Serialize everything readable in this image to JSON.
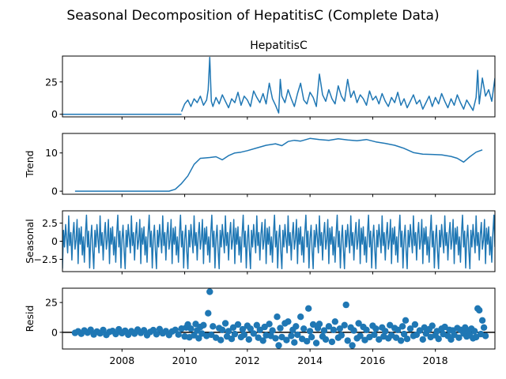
{
  "figure": {
    "title": "Seasonal Decomposition of HepatitisC (Complete Data)",
    "color": "#1f77b4"
  },
  "chart_data": [
    {
      "type": "line",
      "panel": "observed",
      "title": "HepatitisC",
      "ylabel": "",
      "xlim": [
        2006.1,
        2019.9
      ],
      "ylim": [
        -2,
        45
      ],
      "yticks": [
        0,
        25
      ],
      "xticks": [
        2008,
        2010,
        2012,
        2014,
        2016,
        2018
      ],
      "xtick_labels_visible": false,
      "segments": [
        {
          "x": [
            2006.1,
            2009.9
          ],
          "y": [
            0,
            0
          ]
        },
        {
          "x": [
            2009.9,
            2010.0,
            2010.1,
            2010.2,
            2010.3,
            2010.4,
            2010.5,
            2010.6,
            2010.7,
            2010.75,
            2010.8,
            2010.85,
            2010.9,
            2011.0,
            2011.1,
            2011.2,
            2011.3,
            2011.4,
            2011.5,
            2011.6,
            2011.7,
            2011.8,
            2011.9,
            2012.0,
            2012.1,
            2012.2,
            2012.3,
            2012.4,
            2012.5,
            2012.6,
            2012.7,
            2012.8,
            2012.9,
            2013.0,
            2013.05,
            2013.1,
            2013.2,
            2013.3,
            2013.4,
            2013.5,
            2013.6,
            2013.7,
            2013.8,
            2013.9,
            2014.0,
            2014.1,
            2014.2,
            2014.3,
            2014.4,
            2014.5,
            2014.6,
            2014.7,
            2014.8,
            2014.9,
            2015.0,
            2015.1,
            2015.2,
            2015.3,
            2015.4,
            2015.5,
            2015.6,
            2015.7,
            2015.8,
            2015.9,
            2016.0,
            2016.1,
            2016.2,
            2016.3,
            2016.4,
            2016.5,
            2016.6,
            2016.7,
            2016.8,
            2016.9,
            2017.0,
            2017.1,
            2017.2,
            2017.3,
            2017.4,
            2017.5,
            2017.6,
            2017.7,
            2017.8,
            2017.9,
            2018.0,
            2018.1,
            2018.2,
            2018.3,
            2018.4,
            2018.5,
            2018.6,
            2018.7,
            2018.8,
            2018.9,
            2019.0,
            2019.1,
            2019.2,
            2019.3,
            2019.35,
            2019.4,
            2019.5,
            2019.6,
            2019.7,
            2019.8,
            2019.9
          ],
          "y": [
            2,
            8,
            11,
            6,
            12,
            9,
            14,
            7,
            11,
            19,
            44,
            10,
            6,
            13,
            8,
            15,
            10,
            5,
            12,
            9,
            17,
            7,
            14,
            11,
            6,
            18,
            13,
            9,
            16,
            8,
            24,
            12,
            7,
            1,
            27,
            14,
            9,
            19,
            12,
            6,
            16,
            24,
            11,
            8,
            17,
            13,
            6,
            31,
            15,
            10,
            19,
            12,
            8,
            22,
            14,
            10,
            27,
            13,
            18,
            9,
            15,
            12,
            7,
            18,
            11,
            14,
            8,
            16,
            10,
            6,
            13,
            9,
            17,
            7,
            12,
            5,
            10,
            15,
            8,
            11,
            4,
            9,
            14,
            6,
            13,
            8,
            16,
            10,
            5,
            12,
            7,
            15,
            9,
            4,
            11,
            7,
            3,
            13,
            34,
            8,
            28,
            14,
            19,
            10,
            28
          ]
        }
      ]
    },
    {
      "type": "line",
      "panel": "trend",
      "title": "",
      "ylabel": "Trend",
      "xlim": [
        2006.1,
        2019.9
      ],
      "ylim": [
        -0.8,
        15.1
      ],
      "yticks": [
        0,
        10
      ],
      "xticks": [
        2008,
        2010,
        2012,
        2014,
        2016,
        2018
      ],
      "xtick_labels_visible": false,
      "x": [
        2006.5,
        2009.5,
        2009.7,
        2009.9,
        2010.1,
        2010.3,
        2010.5,
        2010.8,
        2011.0,
        2011.2,
        2011.4,
        2011.6,
        2011.8,
        2012.0,
        2012.3,
        2012.6,
        2012.9,
        2013.1,
        2013.3,
        2013.5,
        2013.7,
        2014.0,
        2014.3,
        2014.6,
        2014.9,
        2015.2,
        2015.5,
        2015.8,
        2016.1,
        2016.4,
        2016.7,
        2017.0,
        2017.3,
        2017.6,
        2017.9,
        2018.2,
        2018.5,
        2018.7,
        2018.9,
        2019.1,
        2019.3,
        2019.5
      ],
      "y": [
        0,
        0,
        0.5,
        2.0,
        4.0,
        7.0,
        8.6,
        8.8,
        9.0,
        8.2,
        9.3,
        10.0,
        10.2,
        10.6,
        11.3,
        12.0,
        12.4,
        11.9,
        13.0,
        13.3,
        13.1,
        13.8,
        13.5,
        13.3,
        13.7,
        13.4,
        13.2,
        13.5,
        12.9,
        12.5,
        12.0,
        11.2,
        10.1,
        9.7,
        9.6,
        9.5,
        9.1,
        8.6,
        7.6,
        9.0,
        10.2,
        10.8
      ]
    },
    {
      "type": "line",
      "panel": "seasonal",
      "title": "",
      "ylabel": "Seasonal",
      "xlim": [
        2006.1,
        2019.9
      ],
      "ylim": [
        -4.2,
        4.2
      ],
      "yticks": [
        2.5,
        0.0,
        -2.5
      ],
      "xticks": [
        2008,
        2010,
        2012,
        2014,
        2016,
        2018
      ],
      "xtick_labels_visible": false,
      "pattern": [
        -3.8,
        1.5,
        -0.8,
        2.3,
        0.4,
        -1.6,
        3.5,
        -0.6,
        1.2,
        -2.6,
        0.9,
        2.6,
        -1.1,
        0.2,
        3.0,
        -3.1,
        1.8,
        -0.4,
        2.0,
        -1.9,
        0.6,
        -2.9,
        1.1,
        3.6,
        -0.8,
        1.4,
        -3.7,
        0.3,
        2.2,
        -1.3
      ],
      "period_years": 1.0
    },
    {
      "type": "scatter",
      "panel": "resid",
      "title": "",
      "ylabel": "Resid",
      "xlim": [
        2006.1,
        2019.9
      ],
      "ylim": [
        -14,
        37
      ],
      "yticks": [
        0,
        25
      ],
      "xticks": [
        2008,
        2010,
        2012,
        2014,
        2016,
        2018
      ],
      "xtick_labels": [
        "2008",
        "2010",
        "2012",
        "2014",
        "2016",
        "2018"
      ],
      "baseline": 0,
      "points": [
        [
          2006.5,
          -0.5
        ],
        [
          2006.6,
          0.8
        ],
        [
          2006.7,
          -1.2
        ],
        [
          2006.8,
          1.5
        ],
        [
          2006.9,
          -0.3
        ],
        [
          2007.0,
          2.1
        ],
        [
          2007.1,
          -1.8
        ],
        [
          2007.2,
          0.6
        ],
        [
          2007.3,
          -0.9
        ],
        [
          2007.4,
          1.9
        ],
        [
          2007.5,
          -2.2
        ],
        [
          2007.6,
          0.4
        ],
        [
          2007.7,
          1.1
        ],
        [
          2007.8,
          -1.4
        ],
        [
          2007.9,
          2.5
        ],
        [
          2008.0,
          -0.7
        ],
        [
          2008.1,
          1.3
        ],
        [
          2008.2,
          -2.0
        ],
        [
          2008.3,
          0.9
        ],
        [
          2008.4,
          -1.1
        ],
        [
          2008.5,
          2.2
        ],
        [
          2008.6,
          -0.5
        ],
        [
          2008.7,
          1.7
        ],
        [
          2008.8,
          -2.4
        ],
        [
          2008.9,
          0.3
        ],
        [
          2009.0,
          1.8
        ],
        [
          2009.1,
          -1.6
        ],
        [
          2009.2,
          2.7
        ],
        [
          2009.3,
          -0.8
        ],
        [
          2009.4,
          1.0
        ],
        [
          2009.5,
          -2.3
        ],
        [
          2009.6,
          0.7
        ],
        [
          2009.7,
          2.0
        ],
        [
          2009.8,
          -1.9
        ],
        [
          2009.9,
          3.1
        ],
        [
          2010.0,
          -3.5
        ],
        [
          2010.05,
          4.0
        ],
        [
          2010.1,
          6.5
        ],
        [
          2010.15,
          -4.2
        ],
        [
          2010.2,
          3.0
        ],
        [
          2010.3,
          -2.5
        ],
        [
          2010.35,
          7.0
        ],
        [
          2010.4,
          1.5
        ],
        [
          2010.45,
          -5.0
        ],
        [
          2010.5,
          4.5
        ],
        [
          2010.55,
          -1.0
        ],
        [
          2010.6,
          6.0
        ],
        [
          2010.7,
          -3.0
        ],
        [
          2010.75,
          16.0
        ],
        [
          2010.8,
          34.0
        ],
        [
          2010.85,
          -2.0
        ],
        [
          2010.9,
          5.0
        ],
        [
          2011.0,
          -4.5
        ],
        [
          2011.1,
          3.5
        ],
        [
          2011.15,
          -6.5
        ],
        [
          2011.2,
          2.0
        ],
        [
          2011.3,
          7.5
        ],
        [
          2011.35,
          -3.5
        ],
        [
          2011.4,
          1.0
        ],
        [
          2011.5,
          -5.5
        ],
        [
          2011.55,
          4.0
        ],
        [
          2011.6,
          -1.5
        ],
        [
          2011.7,
          6.5
        ],
        [
          2011.8,
          -4.0
        ],
        [
          2011.85,
          2.5
        ],
        [
          2011.9,
          -2.0
        ],
        [
          2012.0,
          5.5
        ],
        [
          2012.05,
          -6.0
        ],
        [
          2012.1,
          3.0
        ],
        [
          2012.2,
          -1.0
        ],
        [
          2012.3,
          6.0
        ],
        [
          2012.35,
          -4.5
        ],
        [
          2012.4,
          2.0
        ],
        [
          2012.5,
          -7.0
        ],
        [
          2012.55,
          4.5
        ],
        [
          2012.6,
          -2.5
        ],
        [
          2012.7,
          7.0
        ],
        [
          2012.75,
          -3.0
        ],
        [
          2012.8,
          1.5
        ],
        [
          2012.9,
          -5.0
        ],
        [
          2012.95,
          13.0
        ],
        [
          2013.0,
          -11.0
        ],
        [
          2013.05,
          3.5
        ],
        [
          2013.1,
          -4.0
        ],
        [
          2013.2,
          7.5
        ],
        [
          2013.25,
          -6.5
        ],
        [
          2013.3,
          9.0
        ],
        [
          2013.4,
          -3.0
        ],
        [
          2013.45,
          2.0
        ],
        [
          2013.5,
          -8.5
        ],
        [
          2013.55,
          5.0
        ],
        [
          2013.6,
          -2.0
        ],
        [
          2013.7,
          13.0
        ],
        [
          2013.75,
          -5.5
        ],
        [
          2013.8,
          3.0
        ],
        [
          2013.9,
          -7.5
        ],
        [
          2013.95,
          20.0
        ],
        [
          2014.0,
          1.0
        ],
        [
          2014.05,
          -4.0
        ],
        [
          2014.1,
          6.5
        ],
        [
          2014.2,
          -9.0
        ],
        [
          2014.25,
          3.5
        ],
        [
          2014.3,
          7.0
        ],
        [
          2014.4,
          -3.5
        ],
        [
          2014.45,
          1.5
        ],
        [
          2014.5,
          -6.0
        ],
        [
          2014.6,
          5.0
        ],
        [
          2014.7,
          -8.0
        ],
        [
          2014.75,
          2.0
        ],
        [
          2014.8,
          9.0
        ],
        [
          2014.9,
          -4.5
        ],
        [
          2014.95,
          3.0
        ],
        [
          2015.0,
          -2.5
        ],
        [
          2015.1,
          6.0
        ],
        [
          2015.15,
          23.0
        ],
        [
          2015.2,
          -7.0
        ],
        [
          2015.3,
          4.0
        ],
        [
          2015.35,
          -11.0
        ],
        [
          2015.4,
          1.5
        ],
        [
          2015.5,
          -5.0
        ],
        [
          2015.55,
          7.5
        ],
        [
          2015.6,
          -3.0
        ],
        [
          2015.7,
          4.5
        ],
        [
          2015.75,
          -6.5
        ],
        [
          2015.8,
          2.0
        ],
        [
          2015.9,
          -4.0
        ],
        [
          2016.0,
          5.5
        ],
        [
          2016.05,
          -2.0
        ],
        [
          2016.1,
          3.0
        ],
        [
          2016.2,
          -6.0
        ],
        [
          2016.3,
          4.0
        ],
        [
          2016.35,
          -3.5
        ],
        [
          2016.4,
          1.0
        ],
        [
          2016.5,
          -5.0
        ],
        [
          2016.55,
          6.0
        ],
        [
          2016.6,
          -2.5
        ],
        [
          2016.7,
          3.5
        ],
        [
          2016.75,
          -4.5
        ],
        [
          2016.8,
          2.0
        ],
        [
          2016.9,
          -7.0
        ],
        [
          2016.95,
          5.0
        ],
        [
          2017.0,
          -1.5
        ],
        [
          2017.05,
          10.0
        ],
        [
          2017.1,
          -5.5
        ],
        [
          2017.2,
          3.0
        ],
        [
          2017.3,
          -3.0
        ],
        [
          2017.35,
          6.5
        ],
        [
          2017.4,
          -2.0
        ],
        [
          2017.5,
          1.5
        ],
        [
          2017.6,
          -6.0
        ],
        [
          2017.65,
          4.0
        ],
        [
          2017.7,
          -1.0
        ],
        [
          2017.8,
          2.5
        ],
        [
          2017.85,
          -4.0
        ],
        [
          2017.9,
          5.5
        ],
        [
          2018.0,
          -2.5
        ],
        [
          2018.05,
          1.0
        ],
        [
          2018.1,
          -5.5
        ],
        [
          2018.2,
          3.0
        ],
        [
          2018.25,
          -1.5
        ],
        [
          2018.3,
          4.5
        ],
        [
          2018.4,
          -3.0
        ],
        [
          2018.45,
          2.0
        ],
        [
          2018.5,
          -6.0
        ],
        [
          2018.55,
          1.5
        ],
        [
          2018.6,
          -2.0
        ],
        [
          2018.7,
          3.5
        ],
        [
          2018.75,
          -4.5
        ],
        [
          2018.8,
          2.0
        ],
        [
          2018.9,
          -1.0
        ],
        [
          2018.95,
          4.0
        ],
        [
          2019.0,
          -3.5
        ],
        [
          2019.05,
          1.5
        ],
        [
          2019.1,
          -2.5
        ],
        [
          2019.15,
          3.0
        ],
        [
          2019.2,
          -5.0
        ],
        [
          2019.25,
          1.0
        ],
        [
          2019.3,
          -4.0
        ],
        [
          2019.35,
          20.0
        ],
        [
          2019.4,
          18.5
        ],
        [
          2019.45,
          -1.5
        ],
        [
          2019.5,
          10.0
        ],
        [
          2019.55,
          4.0
        ],
        [
          2019.6,
          -3.0
        ]
      ]
    }
  ]
}
